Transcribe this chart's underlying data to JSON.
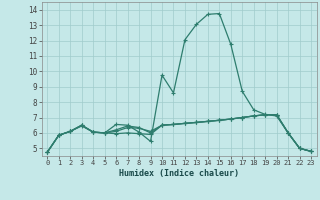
{
  "bg_color": "#c5e8e8",
  "grid_color": "#a0cccc",
  "line_color": "#2e7d6e",
  "xlabel": "Humidex (Indice chaleur)",
  "xlim": [
    -0.5,
    23.5
  ],
  "ylim": [
    4.5,
    14.5
  ],
  "yticks": [
    5,
    6,
    7,
    8,
    9,
    10,
    11,
    12,
    13,
    14
  ],
  "xticks": [
    0,
    1,
    2,
    3,
    4,
    5,
    6,
    7,
    8,
    9,
    10,
    11,
    12,
    13,
    14,
    15,
    16,
    17,
    18,
    19,
    20,
    21,
    22,
    23
  ],
  "line1_x": [
    0,
    1,
    2,
    3,
    4,
    5,
    6,
    7,
    8,
    9,
    10,
    11,
    12,
    13,
    14,
    15,
    16,
    17,
    18,
    19,
    20,
    21,
    22,
    23
  ],
  "line1_y": [
    4.75,
    5.85,
    6.1,
    6.5,
    6.05,
    6.0,
    6.55,
    6.5,
    6.05,
    5.45,
    9.75,
    8.6,
    12.05,
    13.05,
    13.7,
    13.75,
    11.75,
    8.7,
    7.5,
    7.2,
    7.1,
    6.0,
    5.0,
    4.8
  ],
  "line2_x": [
    0,
    1,
    2,
    3,
    4,
    5,
    6,
    7,
    8,
    9,
    10,
    11,
    12,
    13,
    14,
    15,
    16,
    17,
    18,
    19,
    20,
    21,
    22,
    23
  ],
  "line2_y": [
    4.75,
    5.85,
    6.1,
    6.5,
    6.05,
    6.0,
    6.1,
    6.35,
    6.3,
    6.1,
    6.5,
    6.55,
    6.62,
    6.68,
    6.75,
    6.82,
    6.9,
    7.0,
    7.1,
    7.18,
    7.18,
    6.0,
    5.0,
    4.8
  ],
  "line3_x": [
    0,
    1,
    2,
    3,
    4,
    5,
    6,
    7,
    8,
    9,
    10,
    11,
    12,
    13,
    14,
    15,
    16,
    17,
    18,
    19,
    20,
    21,
    22,
    23
  ],
  "line3_y": [
    4.75,
    5.85,
    6.1,
    6.45,
    6.05,
    6.0,
    6.2,
    6.45,
    6.35,
    6.0,
    6.5,
    6.55,
    6.62,
    6.68,
    6.75,
    6.82,
    6.9,
    7.0,
    7.1,
    7.18,
    7.18,
    6.0,
    5.0,
    4.8
  ],
  "line4_x": [
    0,
    1,
    2,
    3,
    4,
    5,
    6,
    7,
    8,
    9,
    10,
    11,
    12,
    13,
    14,
    15,
    16,
    17,
    18,
    19,
    20,
    21,
    22,
    23
  ],
  "line4_y": [
    4.75,
    5.85,
    6.1,
    6.5,
    6.05,
    6.0,
    5.95,
    6.0,
    5.95,
    5.9,
    6.5,
    6.55,
    6.62,
    6.68,
    6.75,
    6.82,
    6.9,
    7.0,
    7.1,
    7.18,
    7.18,
    6.0,
    5.0,
    4.8
  ]
}
